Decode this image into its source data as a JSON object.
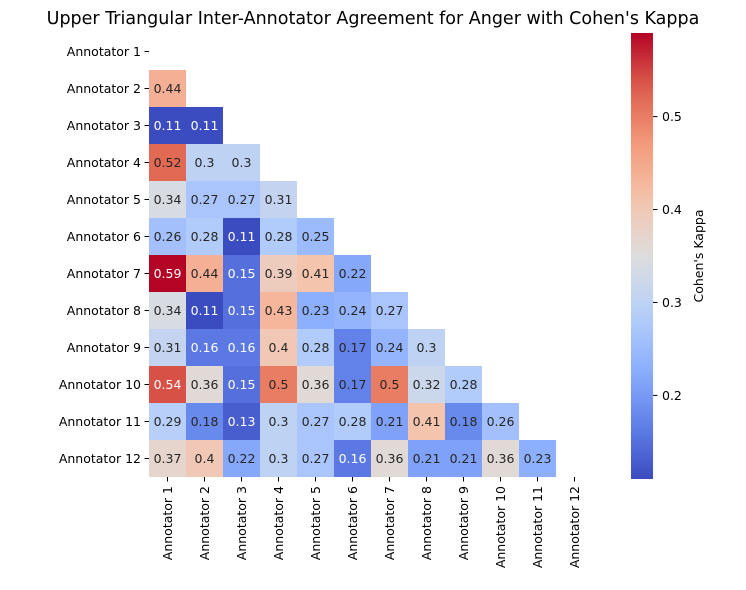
{
  "chart_data": {
    "type": "heatmap",
    "title": "Upper Triangular Inter-Annotator Agreement for Anger with Cohen's Kappa",
    "rows": [
      "Annotator 1",
      "Annotator 2",
      "Annotator 3",
      "Annotator 4",
      "Annotator 5",
      "Annotator 6",
      "Annotator 7",
      "Annotator 8",
      "Annotator 9",
      "Annotator 10",
      "Annotator 11",
      "Annotator 12"
    ],
    "columns": [
      "Annotator 1",
      "Annotator 2",
      "Annotator 3",
      "Annotator 4",
      "Annotator 5",
      "Annotator 6",
      "Annotator 7",
      "Annotator 8",
      "Annotator 9",
      "Annotator 10",
      "Annotator 11",
      "Annotator 12"
    ],
    "values": [
      [],
      [
        0.44
      ],
      [
        0.11,
        0.11
      ],
      [
        0.52,
        0.3,
        0.3
      ],
      [
        0.34,
        0.27,
        0.27,
        0.31
      ],
      [
        0.26,
        0.28,
        0.11,
        0.28,
        0.25
      ],
      [
        0.59,
        0.44,
        0.15,
        0.39,
        0.41,
        0.22
      ],
      [
        0.34,
        0.11,
        0.15,
        0.43,
        0.23,
        0.24,
        0.27
      ],
      [
        0.31,
        0.16,
        0.16,
        0.4,
        0.28,
        0.17,
        0.24,
        0.3
      ],
      [
        0.54,
        0.36,
        0.15,
        0.5,
        0.36,
        0.17,
        0.5,
        0.32,
        0.28
      ],
      [
        0.29,
        0.18,
        0.13,
        0.3,
        0.27,
        0.28,
        0.21,
        0.41,
        0.18,
        0.26
      ],
      [
        0.37,
        0.4,
        0.22,
        0.3,
        0.27,
        0.16,
        0.36,
        0.21,
        0.21,
        0.36,
        0.23
      ]
    ],
    "colorbar": {
      "label": "Cohen's Kappa",
      "range": [
        0.11,
        0.59
      ],
      "ticks": [
        0.2,
        0.3,
        0.4,
        0.5
      ],
      "tick_labels": [
        "0.2",
        "0.3",
        "0.4",
        "0.5"
      ],
      "colormap": "coolwarm"
    }
  }
}
